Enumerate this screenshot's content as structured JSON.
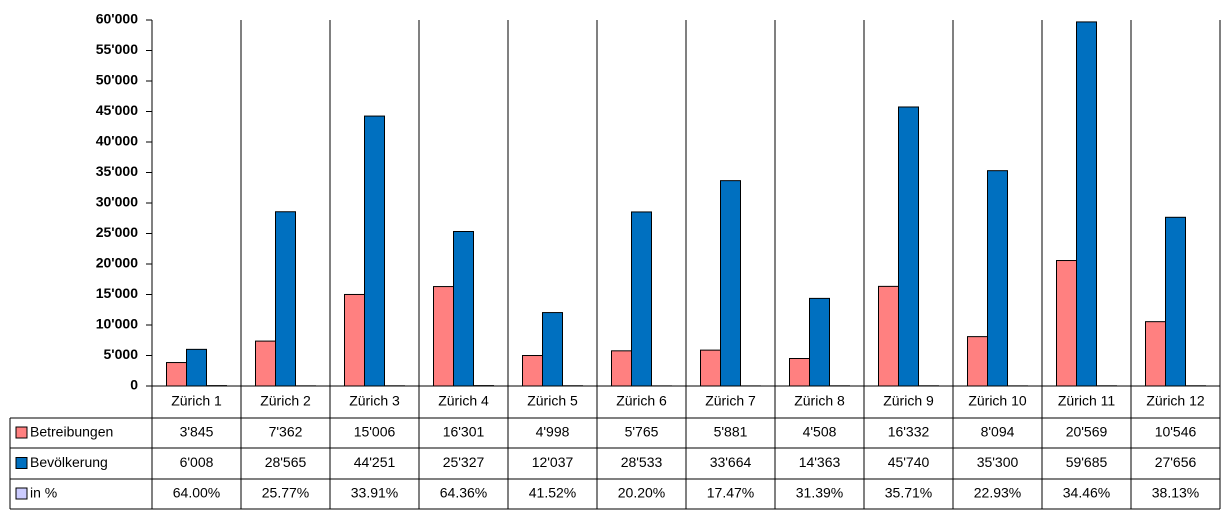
{
  "chart_data": {
    "type": "bar",
    "categories": [
      "Zürich 1",
      "Zürich 2",
      "Zürich 3",
      "Zürich 4",
      "Zürich 5",
      "Zürich 6",
      "Zürich 7",
      "Zürich 8",
      "Zürich 9",
      "Zürich 10",
      "Zürich 11",
      "Zürich 12"
    ],
    "series": [
      {
        "name": "Betreibungen",
        "color": "#ff8080",
        "values": [
          3845,
          7362,
          15006,
          16301,
          4998,
          5765,
          5881,
          4508,
          16332,
          8094,
          20569,
          10546
        ],
        "value_labels": [
          "3'845",
          "7'362",
          "15'006",
          "16'301",
          "4'998",
          "5'765",
          "5'881",
          "4'508",
          "16'332",
          "8'094",
          "20'569",
          "10'546"
        ]
      },
      {
        "name": "Bevölkerung",
        "color": "#0070c0",
        "values": [
          6008,
          28565,
          44251,
          25327,
          12037,
          28533,
          33664,
          14363,
          45740,
          35300,
          59685,
          27656
        ],
        "value_labels": [
          "6'008",
          "28'565",
          "44'251",
          "25'327",
          "12'037",
          "28'533",
          "33'664",
          "14'363",
          "45'740",
          "35'300",
          "59'685",
          "27'656"
        ]
      },
      {
        "name": "in %",
        "color": "#ccccff",
        "values": [
          64.0,
          25.77,
          33.91,
          64.36,
          41.52,
          20.2,
          17.47,
          31.39,
          35.71,
          22.93,
          34.46,
          38.13
        ],
        "value_labels": [
          "64.00%",
          "25.77%",
          "33.91%",
          "64.36%",
          "41.52%",
          "20.20%",
          "17.47%",
          "31.39%",
          "35.71%",
          "22.93%",
          "34.46%",
          "38.13%"
        ]
      }
    ],
    "ylim": [
      0,
      60000
    ],
    "yticks": [
      0,
      {
        "value": 5000,
        "label": "5'000"
      },
      {
        "value": 10000,
        "label": "10'000"
      },
      {
        "value": 15000,
        "label": "15'000"
      },
      {
        "value": 20000,
        "label": "20'000"
      },
      {
        "value": 25000,
        "label": "25'000"
      },
      {
        "value": 30000,
        "label": "30'000"
      },
      {
        "value": 35000,
        "label": "35'000"
      },
      {
        "value": 40000,
        "label": "40'000"
      },
      {
        "value": 45000,
        "label": "45'000"
      },
      {
        "value": 50000,
        "label": "50'000"
      },
      {
        "value": 55000,
        "label": "55'000"
      },
      {
        "value": 60000,
        "label": "60'000"
      }
    ],
    "grid": true
  }
}
